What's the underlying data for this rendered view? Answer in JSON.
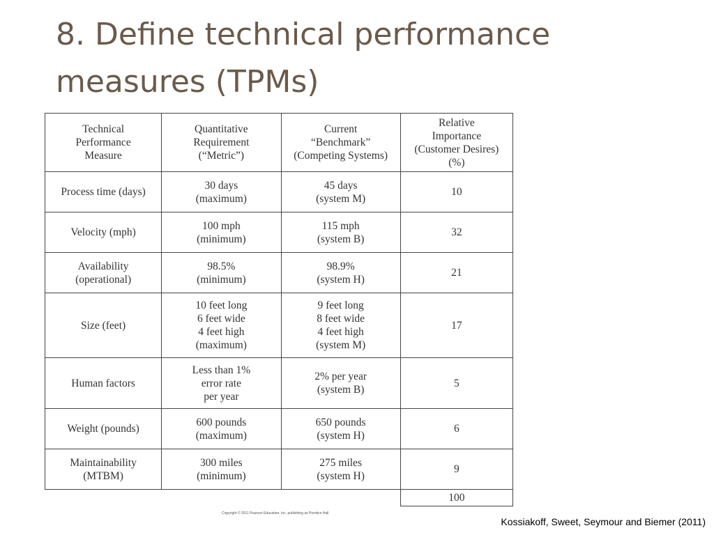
{
  "slide": {
    "title": "8. Define technical performance measures (TPMs)"
  },
  "table": {
    "headers": [
      "Technical\nPerformance\nMeasure",
      "Quantitative\nRequirement\n(“Metric”)",
      "Current\n“Benchmark”\n(Competing Systems)",
      "Relative\nImportance\n(Customer Desires)\n(%)"
    ],
    "rows": [
      [
        "Process time (days)",
        "30 days\n(maximum)",
        "45 days\n(system M)",
        "10"
      ],
      [
        "Velocity (mph)",
        "100 mph\n(minimum)",
        "115 mph\n(system B)",
        "32"
      ],
      [
        "Availability\n(operational)",
        "98.5%\n(minimum)",
        "98.9%\n(system H)",
        "21"
      ],
      [
        "Size (feet)",
        "10 feet long\n6 feet wide\n4 feet high\n(maximum)",
        "9 feet long\n8 feet wide\n4 feet high\n(system M)",
        "17"
      ],
      [
        "Human factors",
        "Less than 1%\nerror rate\nper year",
        "2% per year\n(system B)",
        "5"
      ],
      [
        "Weight (pounds)",
        "600 pounds\n(maximum)",
        "650 pounds\n(system H)",
        "6"
      ],
      [
        "Maintainability\n(MTBM)",
        "300 miles\n(minimum)",
        "275 miles\n(system H)",
        "9"
      ]
    ],
    "total": "100"
  },
  "footer": {
    "copyright": "Copyright © 2011 Pearson Education, Inc. publishing as Prentice Hall",
    "source": "Kossiakoff, Sweet, Seymour and Biemer (2011)"
  }
}
